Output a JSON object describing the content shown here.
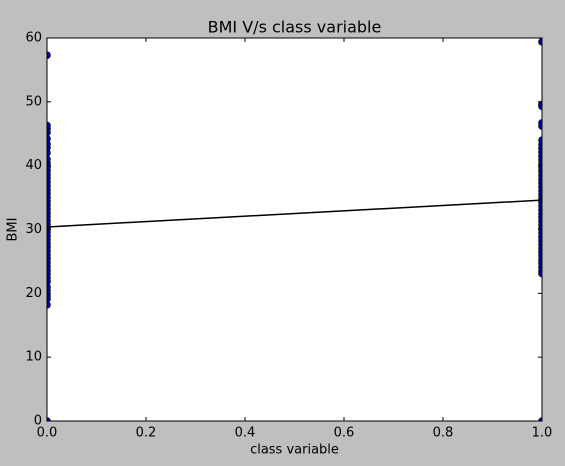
{
  "chart_data": {
    "type": "scatter",
    "title": "BMI V/s class variable",
    "x_label": "class variable",
    "y_label": "BMI",
    "xlim": [
      0,
      1
    ],
    "ylim": [
      0,
      60
    ],
    "xticks": [
      {
        "value": 0,
        "label": "0.0"
      },
      {
        "value": 0.2,
        "label": "0.2"
      },
      {
        "value": 0.4,
        "label": "0.4"
      },
      {
        "value": 0.6,
        "label": "0.6"
      },
      {
        "value": 0.8,
        "label": "0.8"
      },
      {
        "value": 1,
        "label": "1.0"
      }
    ],
    "yticks": [
      0,
      10,
      20,
      30,
      40,
      50,
      60
    ],
    "series": [
      {
        "type": "scatter",
        "color": "#0000b0",
        "x": [
          0,
          0,
          0,
          0,
          0,
          0,
          0,
          0,
          0,
          0,
          0,
          0,
          0,
          0,
          0,
          0,
          0,
          0,
          0,
          0,
          0,
          0,
          0,
          0,
          0,
          0,
          0,
          0,
          0,
          0,
          0,
          0,
          0,
          0,
          0,
          0,
          0,
          0,
          0,
          0,
          0,
          0,
          0,
          0,
          0,
          0,
          0
        ],
        "y": [
          57.3,
          0,
          18.2,
          19.1,
          19.6,
          20.4,
          21.0,
          21.8,
          22.4,
          23.0,
          23.6,
          24.2,
          24.8,
          25.4,
          26.0,
          26.6,
          27.2,
          27.8,
          28.4,
          29.0,
          29.6,
          30.2,
          30.8,
          31.4,
          32.0,
          32.6,
          33.2,
          33.8,
          34.4,
          35.0,
          35.6,
          36.2,
          36.8,
          37.4,
          38.0,
          38.6,
          39.2,
          39.8,
          40.4,
          41.0,
          42.0,
          42.8,
          43.4,
          44.2,
          45.2,
          45.8,
          46.3
        ]
      },
      {
        "type": "scatter",
        "color": "#0000b0",
        "x": [
          1,
          1,
          1,
          1,
          1,
          1,
          1,
          1,
          1,
          1,
          1,
          1,
          1,
          1,
          1,
          1,
          1,
          1,
          1,
          1,
          1,
          1,
          1,
          1,
          1,
          1,
          1,
          1,
          1,
          1,
          1,
          1,
          1,
          1,
          1,
          1,
          1,
          1,
          1,
          1,
          1,
          1
        ],
        "y": [
          59.4,
          0,
          49.6,
          49.3,
          46.7,
          46.2,
          44.0,
          43.3,
          42.7,
          42.1,
          41.5,
          40.9,
          40.3,
          39.7,
          39.1,
          38.5,
          37.9,
          37.3,
          36.7,
          36.1,
          35.5,
          34.9,
          34.3,
          33.7,
          33.1,
          32.5,
          31.9,
          31.3,
          30.7,
          30.1,
          29.5,
          28.9,
          28.3,
          27.7,
          27.1,
          26.5,
          25.9,
          25.3,
          24.7,
          24.1,
          23.5,
          23.1
        ]
      },
      {
        "type": "line",
        "color": "#000000",
        "x": [
          0,
          1
        ],
        "y": [
          30.4,
          34.6
        ]
      }
    ]
  }
}
